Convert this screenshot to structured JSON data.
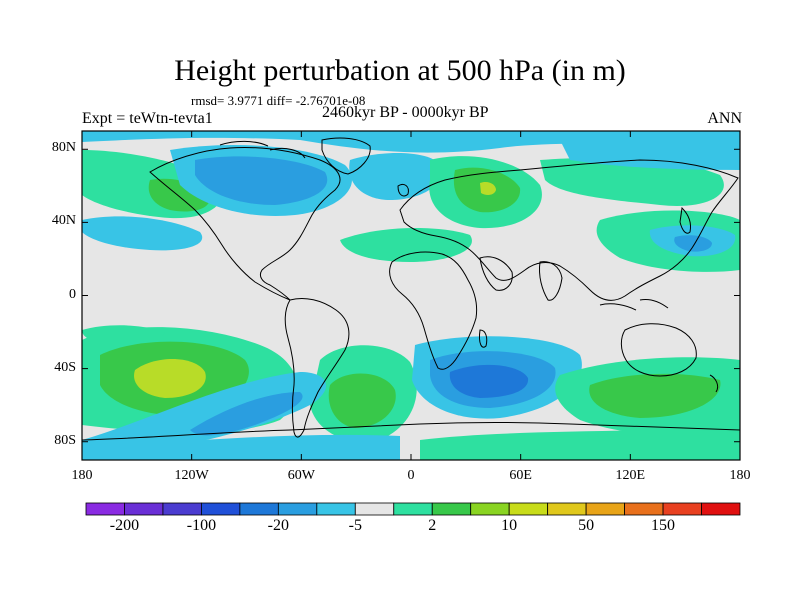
{
  "title": "Height perturbation at 500 hPa (in m)",
  "stats_line": "rmsd= 3.9771 diff= -2.76701e-08",
  "expt_label": "Expt = teWtn-tevta1",
  "period_label": "2460kyr BP - 0000kyr BP",
  "season_label": "ANN",
  "y_ticks": [
    {
      "label": "80N",
      "lat": 80
    },
    {
      "label": "40N",
      "lat": 40
    },
    {
      "label": "0",
      "lat": 0
    },
    {
      "label": "40S",
      "lat": -40
    },
    {
      "label": "80S",
      "lat": -80
    }
  ],
  "x_ticks": [
    {
      "label": "180",
      "lon": -180
    },
    {
      "label": "120W",
      "lon": -120
    },
    {
      "label": "60W",
      "lon": -60
    },
    {
      "label": "0",
      "lon": 0
    },
    {
      "label": "60E",
      "lon": 60
    },
    {
      "label": "120E",
      "lon": 120
    },
    {
      "label": "180",
      "lon": 180
    }
  ],
  "colorbar": {
    "colors": [
      "#8a2be2",
      "#6a2fd6",
      "#4b3cd0",
      "#2050d8",
      "#1e78d8",
      "#2a9ee0",
      "#38c4e6",
      "#e6e6e6",
      "#2ee0a0",
      "#38c84a",
      "#8ad422",
      "#c8dc1a",
      "#e0c81c",
      "#e8a418",
      "#e8701c",
      "#e84020",
      "#e01010"
    ],
    "labels": [
      {
        "text": "-200",
        "boundary": 1
      },
      {
        "text": "-100",
        "boundary": 3
      },
      {
        "text": "-20",
        "boundary": 5
      },
      {
        "text": "-5",
        "boundary": 7
      },
      {
        "text": "2",
        "boundary": 9
      },
      {
        "text": "10",
        "boundary": 11
      },
      {
        "text": "50",
        "boundary": 13
      },
      {
        "text": "150",
        "boundary": 15
      }
    ]
  },
  "colors": {
    "background_field": "#e6e6e6",
    "coastline": "#000000"
  }
}
